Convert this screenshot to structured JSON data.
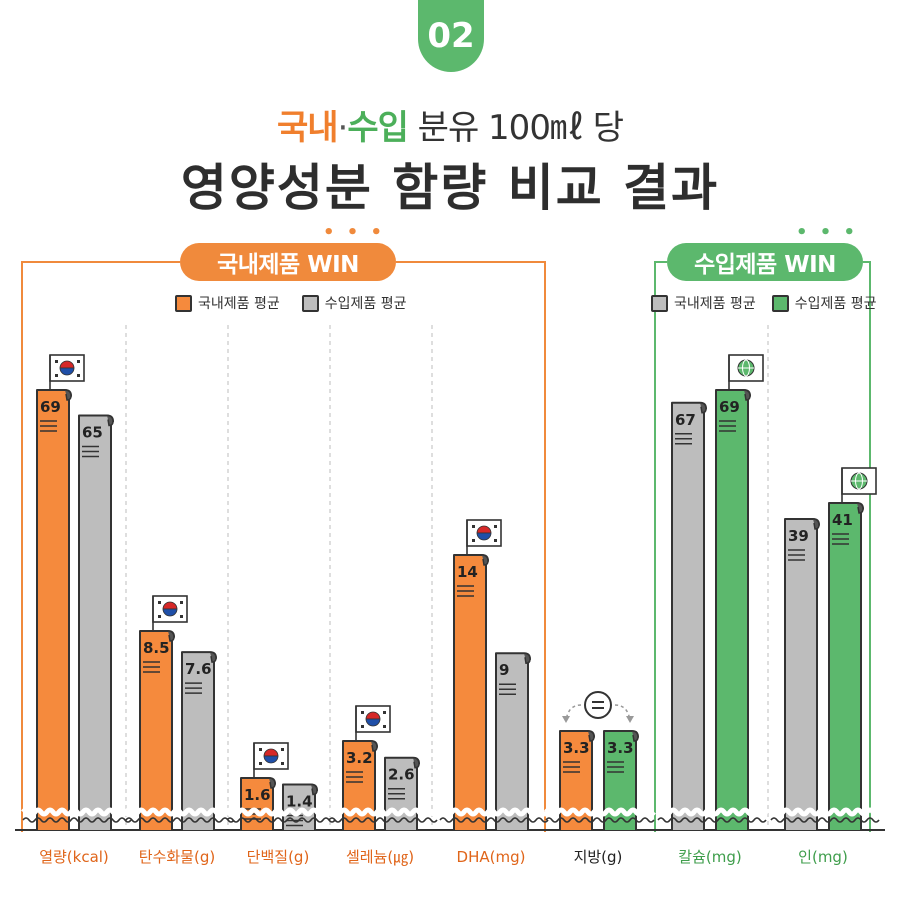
{
  "badge": "02",
  "title": {
    "domestic": "국내",
    "separator": "·",
    "imported": "수입",
    "rest": " 분유 100㎖ 당",
    "main": "영양성분 함량 비교 결과"
  },
  "groups": {
    "domestic_win": {
      "label": "국내제품 WIN",
      "dots": "• • •"
    },
    "imported_win": {
      "label": "수입제품 WIN",
      "dots": "• • •"
    }
  },
  "legend": {
    "domestic": "국내제품 평균",
    "imported": "수입제품 평균"
  },
  "colors": {
    "domestic": "#f58a3d",
    "imported": "#bdbdbd",
    "imported_win": "#5cb86d",
    "domestic_label": "#e0651a",
    "imported_label": "#3f9e4c",
    "neutral_label": "#222222"
  },
  "chart_data": {
    "type": "bar",
    "categories": [
      "열량(kcal)",
      "탄수화물(g)",
      "단백질(g)",
      "셀레늄(㎍)",
      "DHA(mg)",
      "지방(g)",
      "칼슘(mg)",
      "인(mg)"
    ],
    "series": [
      {
        "name": "국내제품 평균",
        "values": [
          69,
          8.5,
          1.6,
          3.2,
          14,
          3.3,
          67,
          39
        ],
        "labels": [
          "69",
          "8.5",
          "1.6",
          "3.2",
          "14",
          "3.3",
          "67",
          "39"
        ]
      },
      {
        "name": "수입제품 평균",
        "values": [
          65,
          7.6,
          1.4,
          2.6,
          9,
          3.3,
          69,
          41
        ],
        "labels": [
          "65",
          "7.6",
          "1.4",
          "2.6",
          "9",
          "3.3",
          "69",
          "41"
        ]
      }
    ],
    "winner": [
      "domestic",
      "domestic",
      "domestic",
      "domestic",
      "domestic",
      "tie",
      "imported",
      "imported"
    ],
    "note": "each category drawn on its own scale (broken axis)"
  }
}
